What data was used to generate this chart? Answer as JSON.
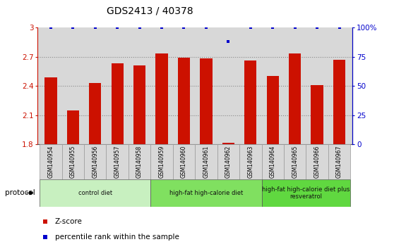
{
  "title": "GDS2413 / 40378",
  "samples": [
    "GSM140954",
    "GSM140955",
    "GSM140956",
    "GSM140957",
    "GSM140958",
    "GSM140959",
    "GSM140960",
    "GSM140961",
    "GSM140962",
    "GSM140963",
    "GSM140964",
    "GSM140965",
    "GSM140966",
    "GSM140967"
  ],
  "z_scores": [
    2.49,
    2.15,
    2.43,
    2.63,
    2.61,
    2.73,
    2.69,
    2.68,
    1.82,
    2.66,
    2.5,
    2.73,
    2.41,
    2.67
  ],
  "percentile_ranks": [
    100,
    100,
    100,
    100,
    100,
    100,
    100,
    100,
    88,
    100,
    100,
    100,
    100,
    100
  ],
  "ylim_left": [
    1.8,
    3.0
  ],
  "ylim_right": [
    0,
    100
  ],
  "yticks_left": [
    1.8,
    2.1,
    2.4,
    2.7,
    3.0
  ],
  "ytick_labels_left": [
    "1.8",
    "2.1",
    "2.4",
    "2.7",
    "3"
  ],
  "yticks_right": [
    0,
    25,
    50,
    75,
    100
  ],
  "ytick_labels_right": [
    "0",
    "25",
    "50",
    "75",
    "100%"
  ],
  "bar_color": "#cc1100",
  "dot_color": "#0000cc",
  "bar_bottom": 1.8,
  "grid_lines": [
    2.1,
    2.4,
    2.7
  ],
  "protocols": [
    {
      "label": "control diet",
      "start": 0,
      "end": 4,
      "color": "#c8f0c0"
    },
    {
      "label": "high-fat high-calorie diet",
      "start": 5,
      "end": 9,
      "color": "#80e060"
    },
    {
      "label": "high-fat high-calorie diet plus\nresveratrol",
      "start": 10,
      "end": 13,
      "color": "#60d840"
    }
  ],
  "protocol_label": "protocol",
  "legend_zscore": "Z-score",
  "legend_percentile": "percentile rank within the sample",
  "sample_bg_color": "#d8d8d8",
  "dotted_line_color": "#888888",
  "title_fontsize": 10,
  "tick_fontsize": 7.5,
  "bar_width": 0.55
}
